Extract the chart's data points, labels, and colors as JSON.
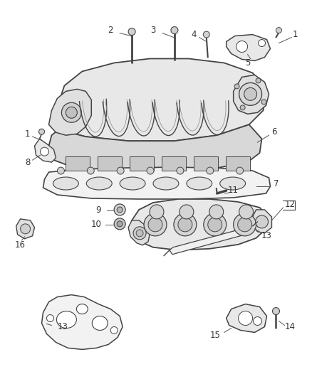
{
  "bg_color": "#ffffff",
  "lc": "#444444",
  "tc": "#333333",
  "fig_w": 4.38,
  "fig_h": 5.33,
  "dpi": 100
}
